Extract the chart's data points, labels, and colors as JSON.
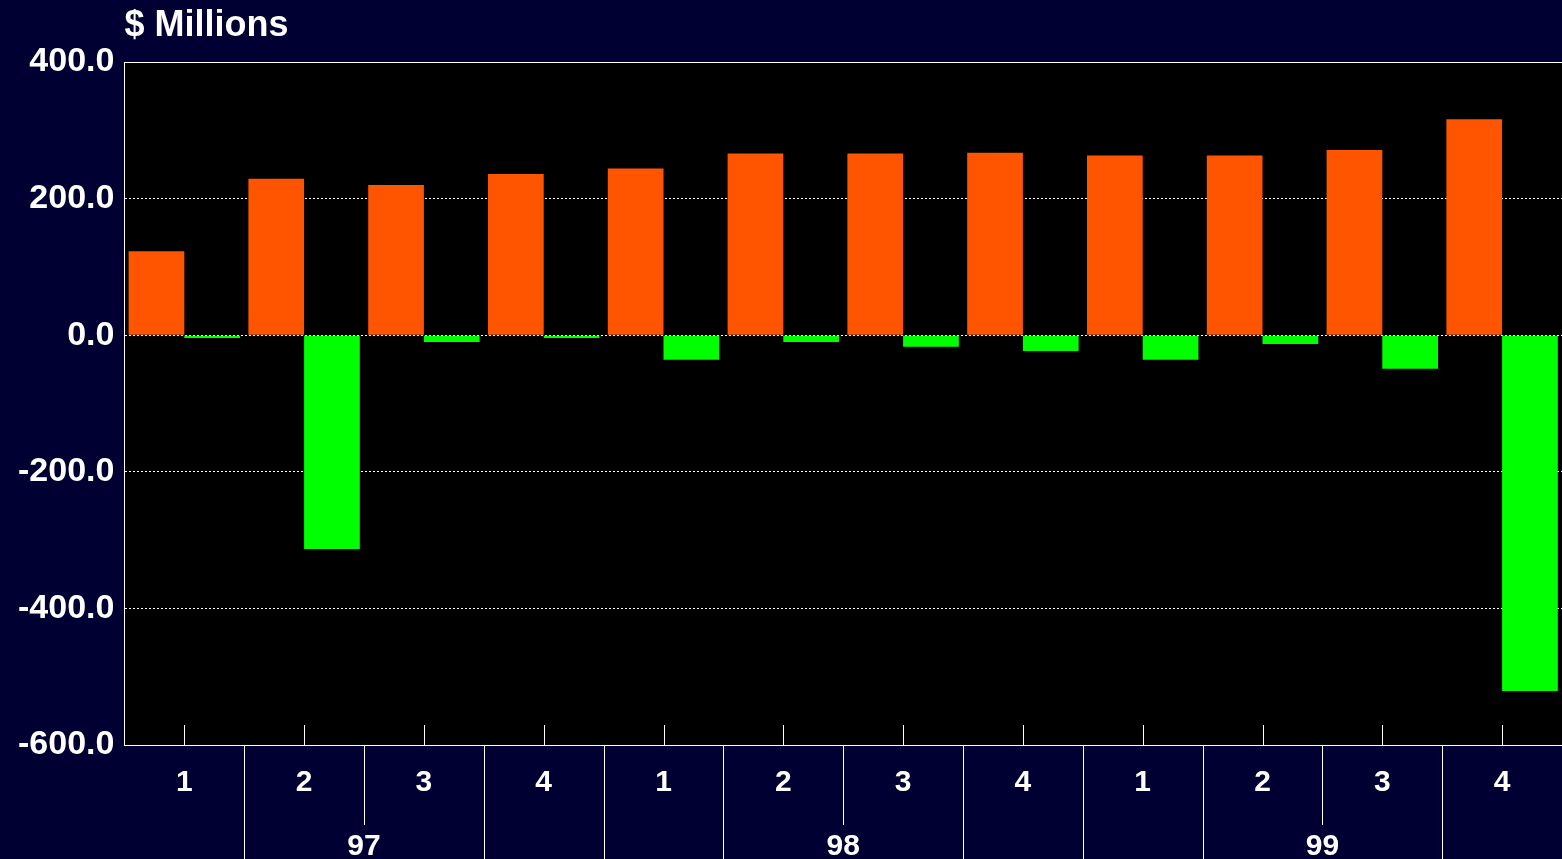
{
  "chart_data": {
    "type": "bar",
    "title": "$ Millions",
    "categories": [
      "1",
      "2",
      "3",
      "4",
      "1",
      "2",
      "3",
      "4",
      "1",
      "2",
      "3",
      "4"
    ],
    "series": [
      {
        "color": "#ff5500",
        "values": [
          123,
          229,
          220,
          236,
          244,
          266,
          266,
          267,
          263,
          263,
          271,
          316
        ]
      },
      {
        "color": "#00ff00",
        "values": [
          -4,
          -313,
          -10,
          -4,
          -36,
          -10,
          -17,
          -23,
          -36,
          -13,
          -49,
          -521
        ]
      }
    ],
    "ylim": [
      -600,
      400
    ],
    "yticks": [
      {
        "value": -600,
        "label": "-600.0"
      },
      {
        "value": -400,
        "label": "-400.0"
      },
      {
        "value": -200,
        "label": "-200.0"
      },
      {
        "value": 0,
        "label": "0.0"
      },
      {
        "value": 200,
        "label": "200.0"
      },
      {
        "value": 400,
        "label": "400.0"
      }
    ],
    "grid": "y",
    "annotations": [
      "97",
      "98",
      "99"
    ]
  }
}
